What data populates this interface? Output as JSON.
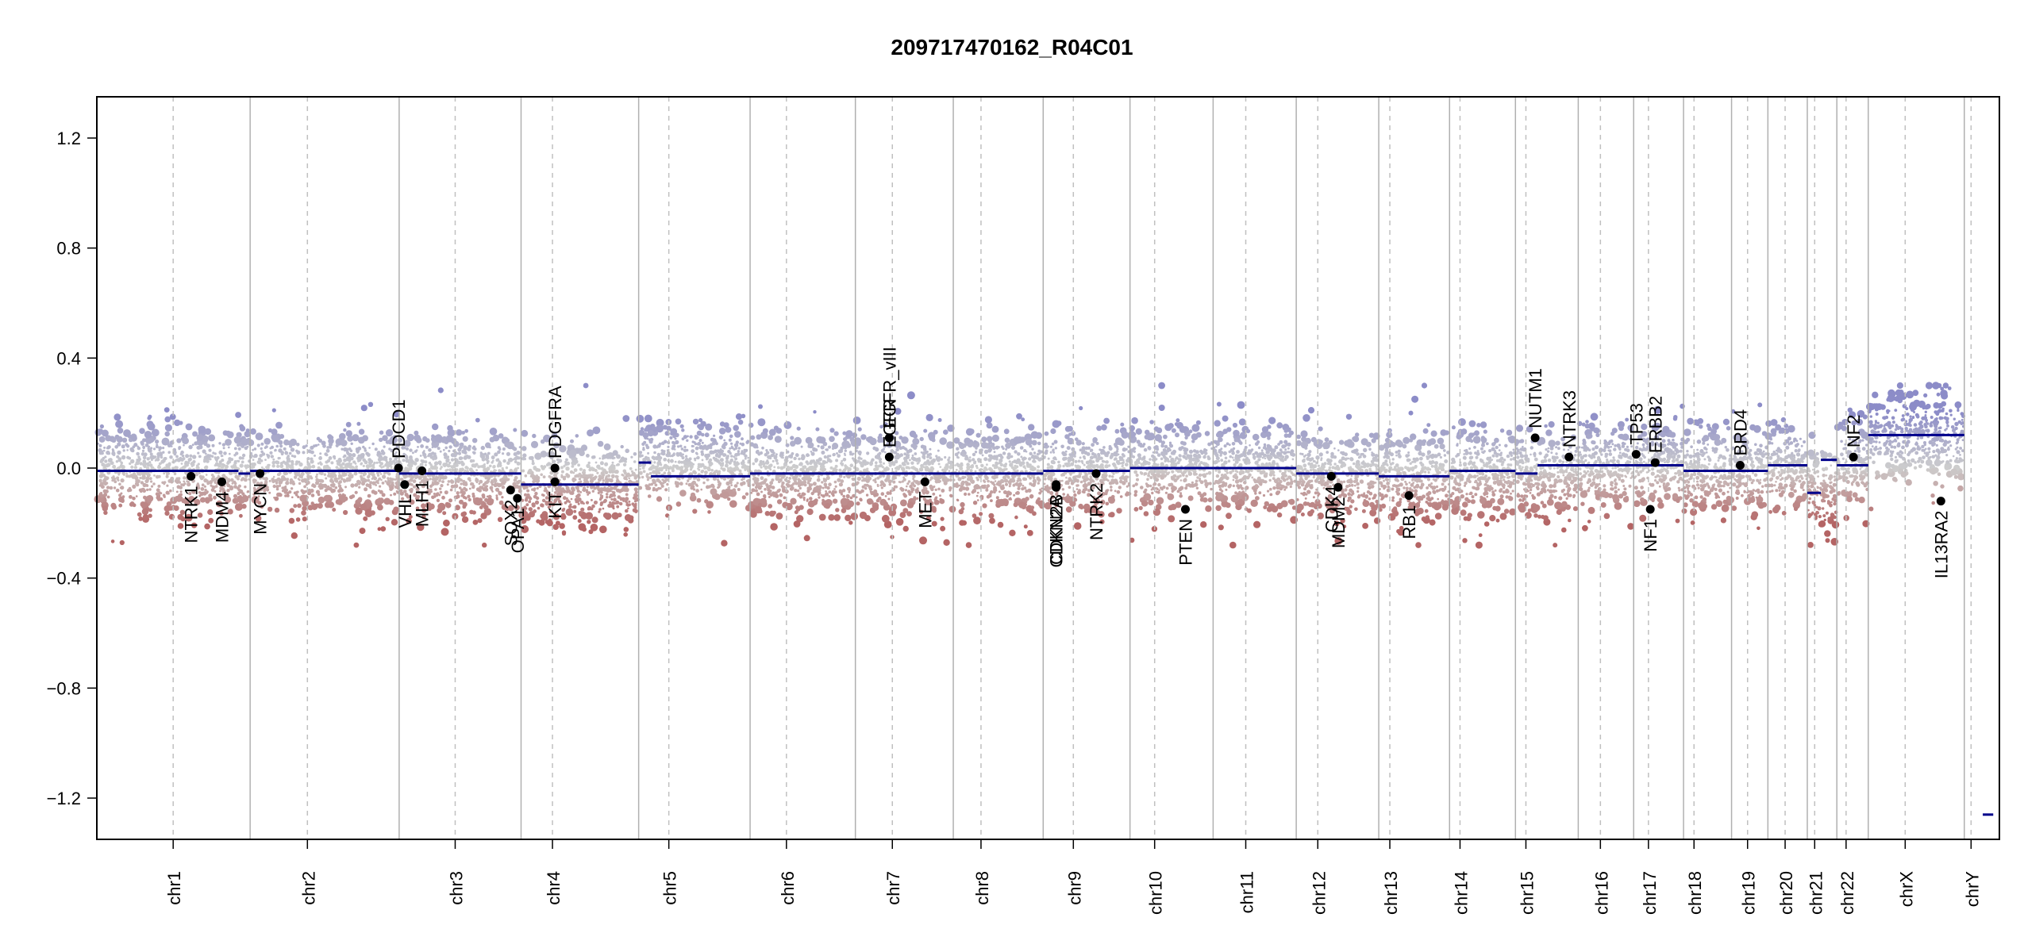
{
  "chart_data": {
    "type": "scatter",
    "title": "209717470162_R04C01",
    "xlabel": "",
    "ylabel": "",
    "ylim": [
      -1.35,
      1.35
    ],
    "y_ticks": [
      1.2,
      0.8,
      0.4,
      0.0,
      -0.4,
      -0.8,
      -1.2
    ],
    "y_tick_labels": [
      "1.2",
      "0.8",
      "0.4",
      "0.0",
      "−0.4",
      "−0.8",
      "−1.2"
    ],
    "grid": "vertical chromosome boundaries (solid) and centromeres (dashed)",
    "colors": {
      "gain": "#8c8cc8",
      "neutral": "#c8c8c8",
      "loss": "#b46464",
      "segment": "#00008b",
      "gene": "#000000"
    },
    "chromosomes": [
      {
        "name": "chr1",
        "start": 0,
        "end": 249,
        "centromere": 124,
        "segments": [
          {
            "from": 0,
            "to": 230,
            "value": -0.01
          },
          {
            "from": 230,
            "to": 249,
            "value": -0.02
          }
        ]
      },
      {
        "name": "chr2",
        "start": 249,
        "end": 491,
        "centromere": 342,
        "segments": [
          {
            "from": 249,
            "to": 491,
            "value": -0.01
          }
        ]
      },
      {
        "name": "chr3",
        "start": 491,
        "end": 689,
        "centromere": 582,
        "segments": [
          {
            "from": 491,
            "to": 689,
            "value": -0.02
          }
        ]
      },
      {
        "name": "chr4",
        "start": 689,
        "end": 880,
        "centromere": 740,
        "segments": [
          {
            "from": 689,
            "to": 880,
            "value": -0.06
          }
        ]
      },
      {
        "name": "chr5",
        "start": 880,
        "end": 1061,
        "centromere": 929,
        "segments": [
          {
            "from": 880,
            "to": 900,
            "value": 0.02
          },
          {
            "from": 900,
            "to": 1061,
            "value": -0.03
          }
        ]
      },
      {
        "name": "chr6",
        "start": 1061,
        "end": 1232,
        "centromere": 1120,
        "segments": [
          {
            "from": 1061,
            "to": 1232,
            "value": -0.02
          }
        ]
      },
      {
        "name": "chr7",
        "start": 1232,
        "end": 1391,
        "centromere": 1292,
        "segments": [
          {
            "from": 1232,
            "to": 1391,
            "value": -0.02
          }
        ]
      },
      {
        "name": "chr8",
        "start": 1391,
        "end": 1537,
        "centromere": 1436,
        "segments": [
          {
            "from": 1391,
            "to": 1537,
            "value": -0.02
          }
        ]
      },
      {
        "name": "chr9",
        "start": 1537,
        "end": 1678,
        "centromere": 1586,
        "segments": [
          {
            "from": 1537,
            "to": 1678,
            "value": -0.01
          }
        ]
      },
      {
        "name": "chr10",
        "start": 1678,
        "end": 1813,
        "centromere": 1718,
        "segments": [
          {
            "from": 1678,
            "to": 1813,
            "value": 0.0
          }
        ]
      },
      {
        "name": "chr11",
        "start": 1813,
        "end": 1948,
        "centromere": 1866,
        "segments": [
          {
            "from": 1813,
            "to": 1948,
            "value": 0.0
          }
        ]
      },
      {
        "name": "chr12",
        "start": 1948,
        "end": 2082,
        "centromere": 1983,
        "segments": [
          {
            "from": 1948,
            "to": 2082,
            "value": -0.02
          }
        ]
      },
      {
        "name": "chr13",
        "start": 2082,
        "end": 2197,
        "centromere": 2100,
        "segments": [
          {
            "from": 2082,
            "to": 2197,
            "value": -0.03
          }
        ]
      },
      {
        "name": "chr14",
        "start": 2197,
        "end": 2304,
        "centromere": 2214,
        "segments": [
          {
            "from": 2197,
            "to": 2304,
            "value": -0.01
          }
        ]
      },
      {
        "name": "chr15",
        "start": 2304,
        "end": 2406,
        "centromere": 2321,
        "segments": [
          {
            "from": 2304,
            "to": 2340,
            "value": -0.02
          },
          {
            "from": 2340,
            "to": 2406,
            "value": 0.01
          }
        ]
      },
      {
        "name": "chr16",
        "start": 2406,
        "end": 2496,
        "centromere": 2442,
        "segments": [
          {
            "from": 2406,
            "to": 2496,
            "value": 0.01
          }
        ]
      },
      {
        "name": "chr17",
        "start": 2496,
        "end": 2577,
        "centromere": 2520,
        "segments": [
          {
            "from": 2496,
            "to": 2577,
            "value": 0.01
          }
        ]
      },
      {
        "name": "chr18",
        "start": 2577,
        "end": 2655,
        "centromere": 2594,
        "segments": [
          {
            "from": 2577,
            "to": 2655,
            "value": -0.01
          }
        ]
      },
      {
        "name": "chr19",
        "start": 2655,
        "end": 2714,
        "centromere": 2681,
        "segments": [
          {
            "from": 2655,
            "to": 2714,
            "value": -0.01
          }
        ]
      },
      {
        "name": "chr20",
        "start": 2714,
        "end": 2778,
        "centromere": 2742,
        "segments": [
          {
            "from": 2714,
            "to": 2778,
            "value": 0.01
          }
        ]
      },
      {
        "name": "chr21",
        "start": 2778,
        "end": 2826,
        "centromere": 2790,
        "segments": [
          {
            "from": 2778,
            "to": 2800,
            "value": -0.09
          },
          {
            "from": 2800,
            "to": 2826,
            "value": 0.03
          }
        ]
      },
      {
        "name": "chr22",
        "start": 2826,
        "end": 2877,
        "centromere": 2841,
        "segments": [
          {
            "from": 2826,
            "to": 2877,
            "value": 0.01
          }
        ]
      },
      {
        "name": "chrX",
        "start": 2877,
        "end": 3033,
        "centromere": 2937,
        "segments": [
          {
            "from": 2877,
            "to": 3033,
            "value": 0.12
          }
        ]
      },
      {
        "name": "chrY",
        "start": 3033,
        "end": 3090,
        "centromere": 3044,
        "segments": [
          {
            "from": 3063,
            "to": 3080,
            "value": -1.26
          }
        ]
      }
    ],
    "genes": [
      {
        "name": "NTRK1",
        "x": 153,
        "y": -0.03
      },
      {
        "name": "MDM4",
        "x": 203,
        "y": -0.05
      },
      {
        "name": "MYCN",
        "x": 265,
        "y": -0.02
      },
      {
        "name": "PDCD1",
        "x": 490,
        "y": 0.0
      },
      {
        "name": "VHL",
        "x": 500,
        "y": -0.06
      },
      {
        "name": "MLH1",
        "x": 528,
        "y": -0.01
      },
      {
        "name": "SOX2",
        "x": 672,
        "y": -0.08
      },
      {
        "name": "OPA1",
        "x": 683,
        "y": -0.11
      },
      {
        "name": "KIT",
        "x": 744,
        "y": -0.05
      },
      {
        "name": "PDGFRA",
        "x": 744,
        "y": 0.0
      },
      {
        "name": "EGFR_vIII",
        "x": 1287,
        "y": 0.11
      },
      {
        "name": "EGFR",
        "x": 1287,
        "y": 0.04
      },
      {
        "name": "MET",
        "x": 1345,
        "y": -0.05
      },
      {
        "name": "CDKN2A",
        "x": 1558,
        "y": -0.07
      },
      {
        "name": "CDKN2B",
        "x": 1558,
        "y": -0.06
      },
      {
        "name": "NTRK2",
        "x": 1623,
        "y": -0.02
      },
      {
        "name": "PTEN",
        "x": 1768,
        "y": -0.15
      },
      {
        "name": "CDK4",
        "x": 2005,
        "y": -0.03
      },
      {
        "name": "MDM2",
        "x": 2016,
        "y": -0.07
      },
      {
        "name": "RB1",
        "x": 2131,
        "y": -0.1
      },
      {
        "name": "NUTM1",
        "x": 2336,
        "y": 0.11
      },
      {
        "name": "NTRK3",
        "x": 2391,
        "y": 0.04
      },
      {
        "name": "TP53",
        "x": 2500,
        "y": 0.05
      },
      {
        "name": "ERBB2",
        "x": 2531,
        "y": 0.02
      },
      {
        "name": "NF1",
        "x": 2523,
        "y": -0.15
      },
      {
        "name": "BRD4",
        "x": 2669,
        "y": 0.01
      },
      {
        "name": "NF2",
        "x": 2853,
        "y": 0.04
      },
      {
        "name": "IL13RA2",
        "x": 2995,
        "y": -0.12
      }
    ]
  }
}
